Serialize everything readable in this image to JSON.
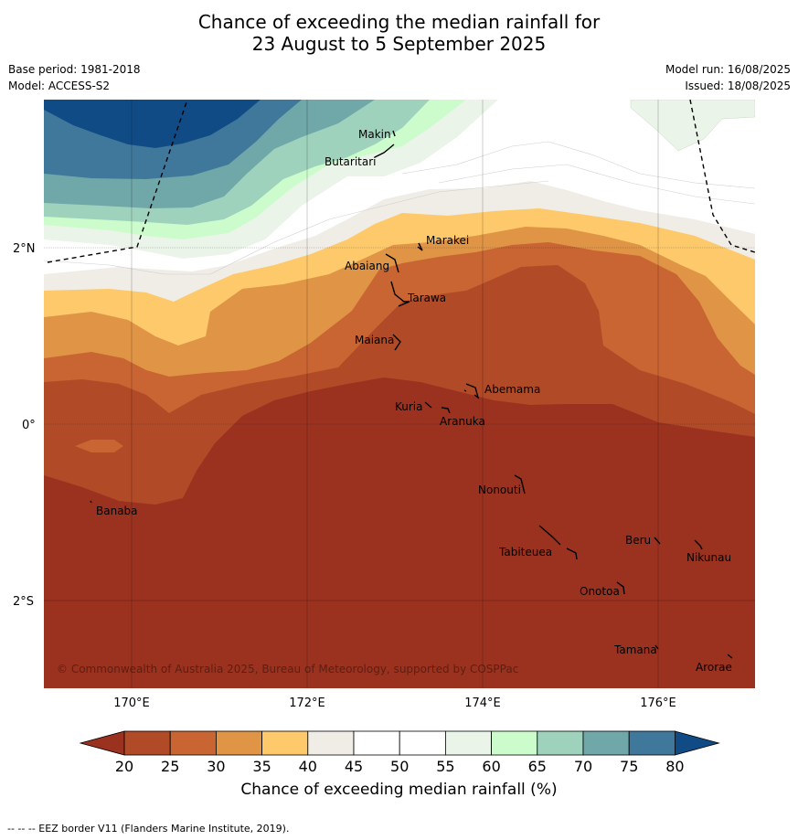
{
  "header": {
    "title_line1": "Chance of exceeding the median rainfall for",
    "title_line2": "23 August to 5 September 2025",
    "base_period": "Base period: 1981-2018",
    "model": "Model: ACCESS-S2",
    "model_run": "Model run: 16/08/2025",
    "issued": "Issued: 18/08/2025"
  },
  "map": {
    "copyright": "© Commonwealth of Australia 2025, Bureau of Meteorology, supported by COSPPac",
    "lat_labels": [
      "2°N",
      "0°",
      "2°S"
    ],
    "lon_labels": [
      "170°E",
      "172°E",
      "174°E",
      "176°E"
    ],
    "places": [
      "Makin",
      "Butaritari",
      "Marakei",
      "Abaiang",
      "Tarawa",
      "Maiana",
      "Abemama",
      "Kuria",
      "Aranuka",
      "Nonouti",
      "Banaba",
      "Beru",
      "Nikunau",
      "Tabiteuea",
      "Onotoa",
      "Tamana",
      "Arorae"
    ]
  },
  "colorbar": {
    "ticks": [
      "20",
      "25",
      "30",
      "35",
      "40",
      "45",
      "50",
      "55",
      "60",
      "65",
      "70",
      "75",
      "80"
    ],
    "colors": [
      "#9a321f",
      "#b04a27",
      "#c96433",
      "#e09445",
      "#fdc96a",
      "#f0ece6",
      "#ffffff",
      "#ffffff",
      "#eaf4e8",
      "#ccfccc",
      "#9ed2bd",
      "#70a7a9",
      "#40789c",
      "#104b85"
    ],
    "label": "Chance of exceeding median rainfall (%)"
  },
  "footer": {
    "eez_note": "--  --  -- EEZ border V11 (Flanders Marine Institute, 2019)."
  }
}
